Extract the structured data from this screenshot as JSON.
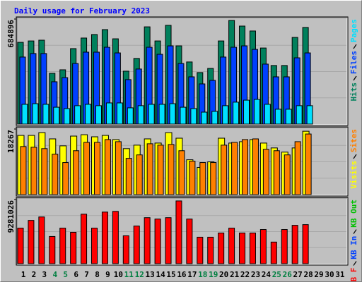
{
  "chart_data": {
    "type": "bar",
    "title": "Daily usage for February 2023",
    "categories": [
      "1",
      "2",
      "3",
      "4",
      "5",
      "6",
      "7",
      "8",
      "9",
      "10",
      "11",
      "12",
      "13",
      "14",
      "15",
      "16",
      "17",
      "18",
      "19",
      "20",
      "21",
      "22",
      "23",
      "24",
      "25",
      "26",
      "27",
      "28",
      "29",
      "30",
      "31"
    ],
    "weekend_indices": [
      3,
      4,
      10,
      11,
      17,
      18,
      24,
      25
    ],
    "label_color": "#000000",
    "weekend_color": "#007f40",
    "panels": [
      {
        "ylim": [
          0,
          684896
        ],
        "yticks": [
          684896
        ],
        "series": [
          {
            "name": "Hits",
            "color": "#00805c",
            "values": [
              533000,
              542000,
              547000,
              331000,
              354000,
              492000,
              561000,
              584000,
              616000,
              556000,
              345000,
              428000,
              634000,
              542000,
              644000,
              510000,
              405000,
              336000,
              363000,
              542000,
              676000,
              639000,
              607000,
              496000,
              382000,
              382000,
              565000,
              630000,
              null,
              null,
              null
            ]
          },
          {
            "name": "Files",
            "color": "#0040ff",
            "values": [
              437000,
              460000,
              460000,
              276000,
              303000,
              395000,
              469000,
              469000,
              501000,
              464000,
              290000,
              359000,
              501000,
              455000,
              510000,
              395000,
              308000,
              262000,
              285000,
              437000,
              501000,
              510000,
              487000,
              391000,
              308000,
              308000,
              432000,
              464000,
              null,
              null,
              null
            ]
          },
          {
            "name": "Pages",
            "color": "#00e0ff",
            "values": [
              129000,
              133000,
              129000,
              110000,
              101000,
              120000,
              129000,
              120000,
              138000,
              138000,
              106000,
              120000,
              129000,
              129000,
              133000,
              110000,
              101000,
              78000,
              83000,
              120000,
              143000,
              156000,
              161000,
              129000,
              97000,
              97000,
              120000,
              120000,
              null,
              null,
              null
            ]
          }
        ]
      },
      {
        "ylim": [
          0,
          18267
        ],
        "yticks": [
          18267
        ],
        "series": [
          {
            "name": "Visits",
            "color": "#ffff00",
            "values": [
              16490,
              16490,
              17266,
              15520,
              13580,
              16296,
              16684,
              16102,
              16490,
              15326,
              12804,
              13774,
              15520,
              14356,
              17266,
              15714,
              9700,
              7566,
              9118,
              15714,
              14356,
              14744,
              15326,
              14356,
              12998,
              11834,
              12998,
              17654,
              null,
              null,
              null
            ]
          },
          {
            "name": "Sites",
            "color": "#ff8000",
            "values": [
              13386,
              13192,
              12804,
              11252,
              8924,
              12222,
              14550,
              14550,
              15326,
              14744,
              10088,
              11058,
              14162,
              13774,
              13968,
              12222,
              9312,
              8924,
              8924,
              13774,
              14550,
              15326,
              15520,
              12610,
              12222,
              11058,
              14744,
              16878,
              null,
              null,
              null
            ]
          }
        ]
      },
      {
        "ylim": [
          0,
          9281026
        ],
        "yticks": [
          9281026
        ],
        "series": [
          {
            "name": "KB F",
            "color": "#ff0000",
            "values": [
              5145000,
              6255000,
              6759000,
              3934000,
              5145000,
              4540000,
              7163000,
              5145000,
              7465000,
              7566000,
              4035000,
              5448000,
              6658000,
              6456000,
              6658000,
              9079000,
              6456000,
              3833000,
              3833000,
              4439000,
              5145000,
              4439000,
              4439000,
              4943000,
              3127000,
              4943000,
              5548000,
              5649000,
              null,
              null,
              null
            ]
          },
          {
            "name": "KB In",
            "color": "#0040ff"
          },
          {
            "name": "KB Out",
            "color": "#00c000"
          }
        ]
      }
    ]
  }
}
